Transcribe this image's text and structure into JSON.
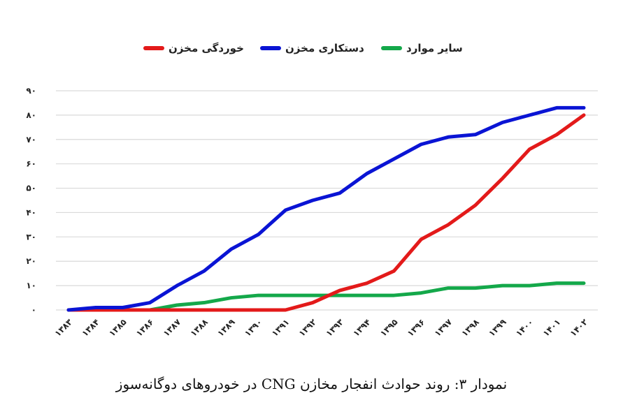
{
  "chart_data": {
    "type": "line",
    "title": "",
    "caption": "نمودار ۳: روند حوادث انفجار مخازن CNG در خودروهای دوگانه‌سوز",
    "x": [
      "۱۳۸۳",
      "۱۳۸۴",
      "۱۳۸۵",
      "۱۳۸۶",
      "۱۳۸۷",
      "۱۳۸۸",
      "۱۳۸۹",
      "۱۳۹۰",
      "۱۳۹۱",
      "۱۳۹۲",
      "۱۳۹۳",
      "۱۳۹۴",
      "۱۳۹۵",
      "۱۳۹۶",
      "۱۳۹۷",
      "۱۳۹۸",
      "۱۳۹۹",
      "۱۴۰۰",
      "۱۴۰۱",
      "۱۴۰۲"
    ],
    "yticks": [
      "۰",
      "۱۰",
      "۲۰",
      "۳۰",
      "۴۰",
      "۵۰",
      "۶۰",
      "۷۰",
      "۸۰",
      "۹۰"
    ],
    "ylim": [
      0,
      90
    ],
    "grid": true,
    "legend_position": "top",
    "series": [
      {
        "name": "خوردگی مخزن",
        "color": "#e31a1a",
        "values": [
          0,
          0,
          0,
          0,
          0,
          0,
          0,
          0,
          0,
          3,
          8,
          11,
          16,
          29,
          35,
          43,
          54,
          66,
          72,
          80
        ]
      },
      {
        "name": "دستکاری مخزن",
        "color": "#0a14d4",
        "values": [
          0,
          1,
          1,
          3,
          10,
          16,
          25,
          31,
          41,
          45,
          48,
          56,
          62,
          68,
          71,
          72,
          77,
          80,
          83,
          83
        ]
      },
      {
        "name": "سایر موارد",
        "color": "#14a84a",
        "values": [
          0,
          0,
          0,
          0,
          2,
          3,
          5,
          6,
          6,
          6,
          6,
          6,
          6,
          7,
          9,
          9,
          10,
          10,
          11,
          11
        ]
      }
    ]
  }
}
